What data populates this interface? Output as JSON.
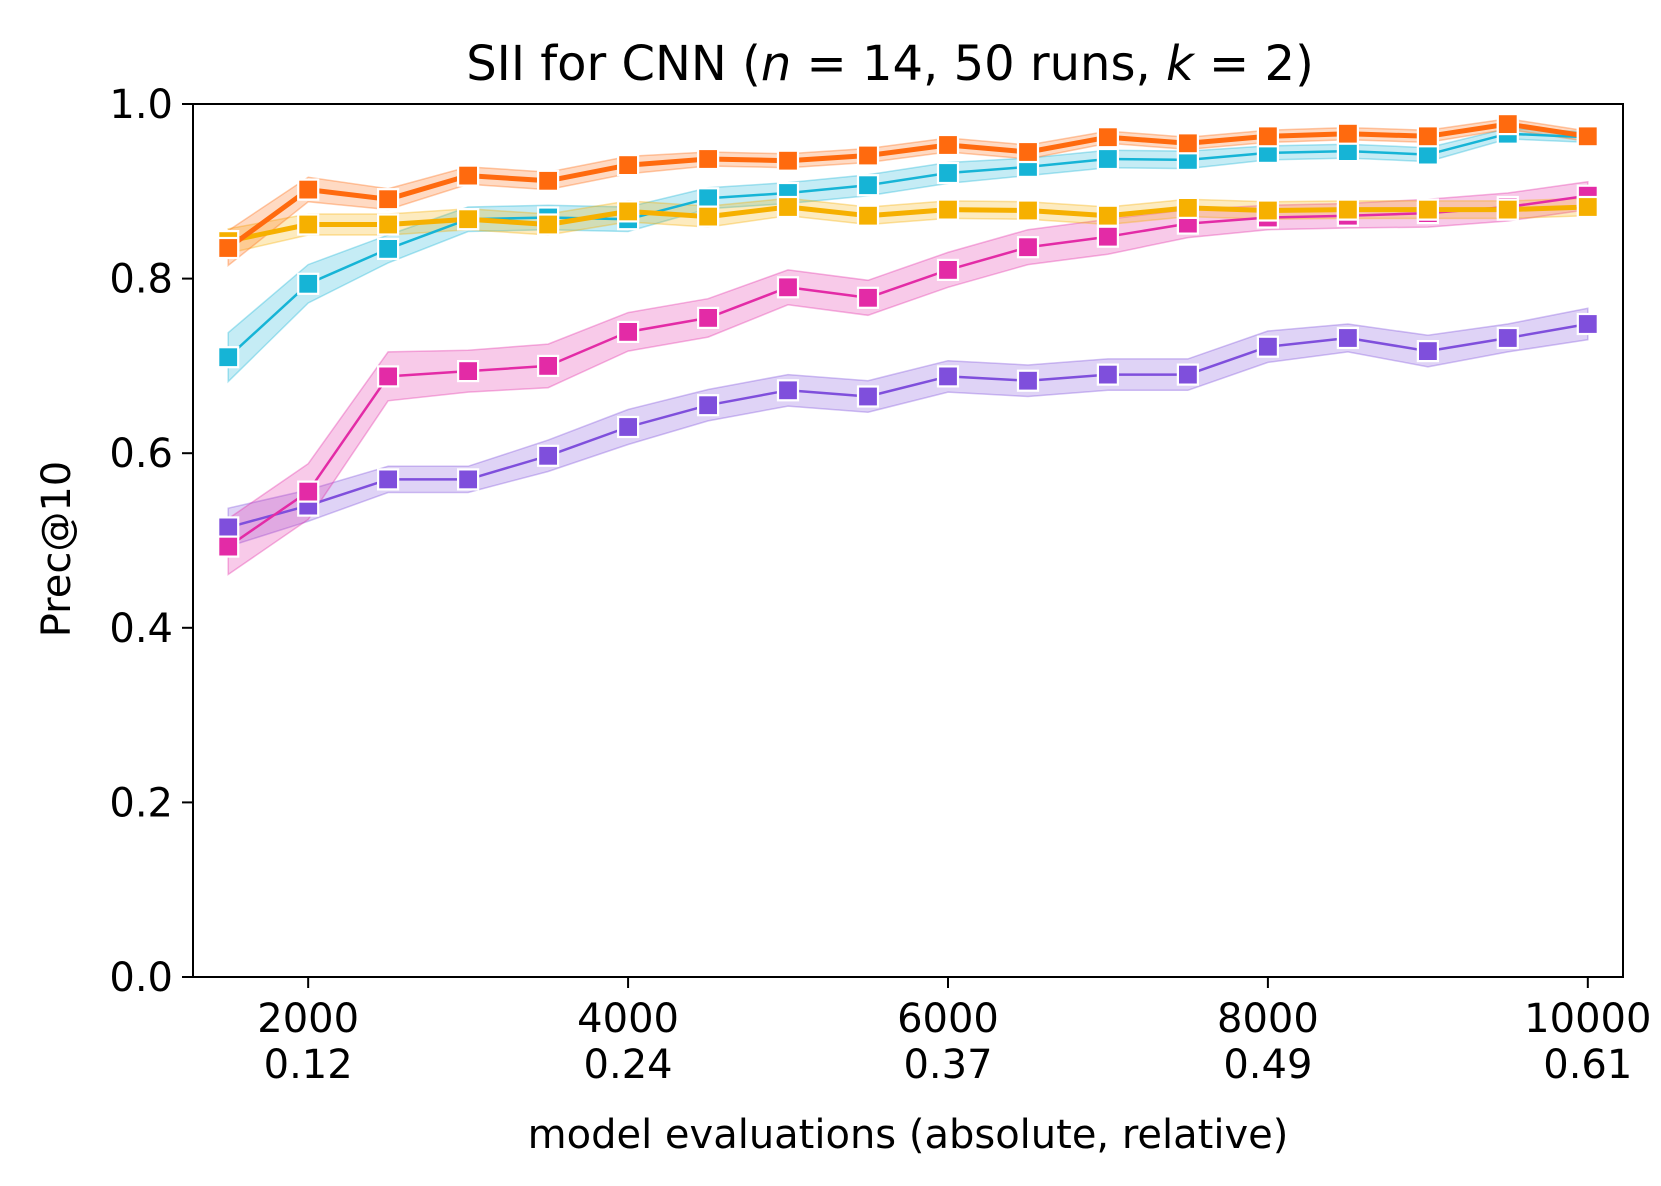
{
  "chart_data": {
    "type": "line",
    "title_parts": {
      "prefix": "SII for CNN (",
      "n_var": "n",
      "n_eq": " = 14, 50 runs, ",
      "k_var": "k",
      "k_eq": " = 2)"
    },
    "xlabel": "model evaluations (absolute, relative)",
    "ylabel": "Prec@10",
    "xlim": [
      1280,
      10220
    ],
    "ylim": [
      0.0,
      1.0
    ],
    "x_ticks": [
      {
        "value": 2000,
        "absolute": "2000",
        "relative": "0.12"
      },
      {
        "value": 4000,
        "absolute": "4000",
        "relative": "0.24"
      },
      {
        "value": 6000,
        "absolute": "6000",
        "relative": "0.37"
      },
      {
        "value": 8000,
        "absolute": "8000",
        "relative": "0.49"
      },
      {
        "value": 10000,
        "absolute": "10000",
        "relative": "0.61"
      }
    ],
    "y_ticks": [
      {
        "value": 0.0,
        "label": "0.0"
      },
      {
        "value": 0.2,
        "label": "0.2"
      },
      {
        "value": 0.4,
        "label": "0.4"
      },
      {
        "value": 0.6,
        "label": "0.6"
      },
      {
        "value": 0.8,
        "label": "0.8"
      },
      {
        "value": 1.0,
        "label": "1.0"
      }
    ],
    "x": [
      1500,
      2000,
      2500,
      3000,
      3500,
      4000,
      4500,
      5000,
      5500,
      6000,
      6500,
      7000,
      7500,
      8000,
      8500,
      9000,
      9500,
      10000
    ],
    "series": [
      {
        "name": "purple",
        "color": "#7f4fdc",
        "line_weight": "thin",
        "values": [
          0.515,
          0.54,
          0.57,
          0.57,
          0.597,
          0.63,
          0.655,
          0.672,
          0.665,
          0.688,
          0.683,
          0.69,
          0.69,
          0.722,
          0.732,
          0.717,
          0.732,
          0.748
        ],
        "band": [
          0.022,
          0.018,
          0.015,
          0.015,
          0.018,
          0.02,
          0.018,
          0.018,
          0.018,
          0.018,
          0.018,
          0.018,
          0.018,
          0.018,
          0.016,
          0.018,
          0.016,
          0.018
        ]
      },
      {
        "name": "pink",
        "color": "#e32ba6",
        "line_weight": "thin",
        "values": [
          0.493,
          0.556,
          0.688,
          0.694,
          0.7,
          0.739,
          0.755,
          0.79,
          0.778,
          0.81,
          0.836,
          0.848,
          0.863,
          0.87,
          0.872,
          0.875,
          0.882,
          0.895
        ],
        "band": [
          0.032,
          0.032,
          0.028,
          0.024,
          0.025,
          0.022,
          0.022,
          0.02,
          0.02,
          0.02,
          0.02,
          0.02,
          0.016,
          0.014,
          0.014,
          0.016,
          0.016,
          0.016
        ]
      },
      {
        "name": "cyan",
        "color": "#16b4d6",
        "line_weight": "thin",
        "values": [
          0.71,
          0.794,
          0.834,
          0.868,
          0.87,
          0.868,
          0.892,
          0.898,
          0.907,
          0.921,
          0.928,
          0.937,
          0.936,
          0.944,
          0.946,
          0.942,
          0.966,
          0.962
        ],
        "band": [
          0.028,
          0.022,
          0.016,
          0.014,
          0.014,
          0.014,
          0.012,
          0.012,
          0.012,
          0.012,
          0.01,
          0.01,
          0.01,
          0.008,
          0.008,
          0.008,
          0.006,
          0.006
        ]
      },
      {
        "name": "yellow",
        "color": "#f6b000",
        "line_weight": "thick",
        "values": [
          0.843,
          0.862,
          0.862,
          0.868,
          0.862,
          0.877,
          0.871,
          0.882,
          0.872,
          0.879,
          0.878,
          0.872,
          0.881,
          0.878,
          0.879,
          0.879,
          0.879,
          0.882
        ],
        "band": [
          0.014,
          0.012,
          0.012,
          0.012,
          0.012,
          0.012,
          0.012,
          0.01,
          0.01,
          0.01,
          0.01,
          0.01,
          0.01,
          0.01,
          0.01,
          0.01,
          0.01,
          0.01
        ]
      },
      {
        "name": "orange",
        "color": "#ff6a0e",
        "line_weight": "thick",
        "values": [
          0.835,
          0.902,
          0.891,
          0.918,
          0.912,
          0.93,
          0.937,
          0.935,
          0.941,
          0.953,
          0.945,
          0.962,
          0.955,
          0.963,
          0.966,
          0.963,
          0.977,
          0.963
        ],
        "band": [
          0.02,
          0.014,
          0.012,
          0.01,
          0.01,
          0.01,
          0.008,
          0.008,
          0.008,
          0.008,
          0.008,
          0.007,
          0.007,
          0.007,
          0.007,
          0.007,
          0.006,
          0.006
        ]
      }
    ]
  }
}
